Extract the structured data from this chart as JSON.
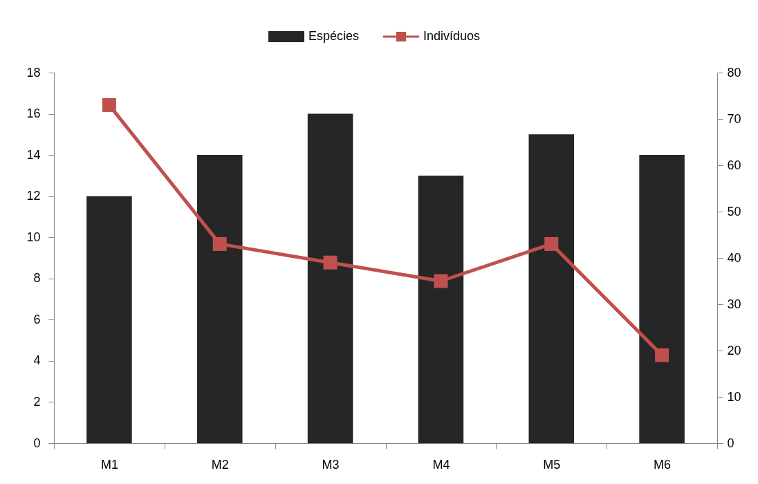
{
  "chart_data": {
    "type": "bar",
    "categories": [
      "M1",
      "M2",
      "M3",
      "M4",
      "M5",
      "M6"
    ],
    "series": [
      {
        "name": "Espécies",
        "color": "#262626",
        "values": [
          12,
          14,
          16,
          13,
          15,
          14
        ]
      },
      {
        "name": "Indivíduos",
        "type": "line",
        "axis": "y2",
        "color": "#c0504d",
        "values": [
          73,
          43,
          39,
          35,
          43,
          19
        ]
      }
    ],
    "ylim": [
      0,
      18
    ],
    "yticks": [
      0,
      2,
      4,
      6,
      8,
      10,
      12,
      14,
      16,
      18
    ],
    "y2lim": [
      0,
      80
    ],
    "y2ticks": [
      0,
      10,
      20,
      30,
      40,
      50,
      60,
      70,
      80
    ],
    "grid": false,
    "legend": "top",
    "marker": "square",
    "line_style": "solid"
  }
}
